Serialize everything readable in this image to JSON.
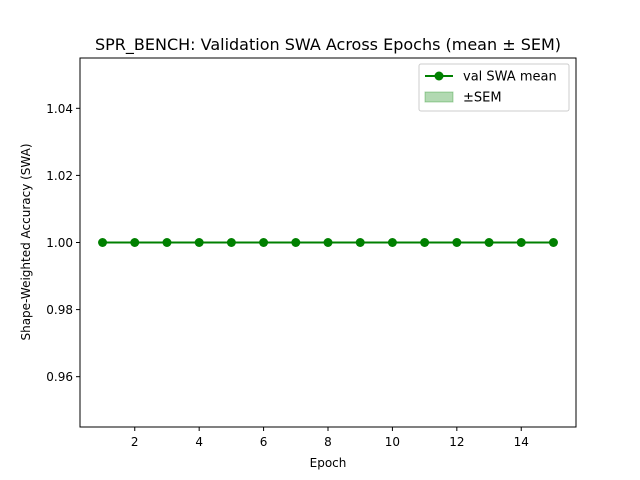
{
  "chart_data": {
    "type": "line",
    "title": "SPR_BENCH: Validation SWA Across Epochs (mean ± SEM)",
    "xlabel": "Epoch",
    "ylabel": "Shape-Weighted Accuracy (SWA)",
    "xlim": [
      0.3,
      15.7
    ],
    "ylim": [
      0.945,
      1.055
    ],
    "xticks": [
      2,
      4,
      6,
      8,
      10,
      12,
      14
    ],
    "xtick_labels": [
      "2",
      "4",
      "6",
      "8",
      "10",
      "12",
      "14"
    ],
    "yticks": [
      0.96,
      0.98,
      1.0,
      1.02,
      1.04
    ],
    "ytick_labels": [
      "0.96",
      "0.98",
      "1.00",
      "1.02",
      "1.04"
    ],
    "grid": false,
    "legend_position": "top-right",
    "x": [
      1,
      2,
      3,
      4,
      5,
      6,
      7,
      8,
      9,
      10,
      11,
      12,
      13,
      14,
      15
    ],
    "series": [
      {
        "name": "val SWA mean",
        "color": "#008000",
        "marker": "circle",
        "values": [
          1.0,
          1.0,
          1.0,
          1.0,
          1.0,
          1.0,
          1.0,
          1.0,
          1.0,
          1.0,
          1.0,
          1.0,
          1.0,
          1.0,
          1.0
        ],
        "sem": [
          0,
          0,
          0,
          0,
          0,
          0,
          0,
          0,
          0,
          0,
          0,
          0,
          0,
          0,
          0
        ]
      }
    ],
    "legend": [
      {
        "label": "val SWA mean",
        "kind": "line-marker",
        "color": "#008000"
      },
      {
        "label": "±SEM",
        "kind": "fill",
        "color": "#008000"
      }
    ]
  }
}
